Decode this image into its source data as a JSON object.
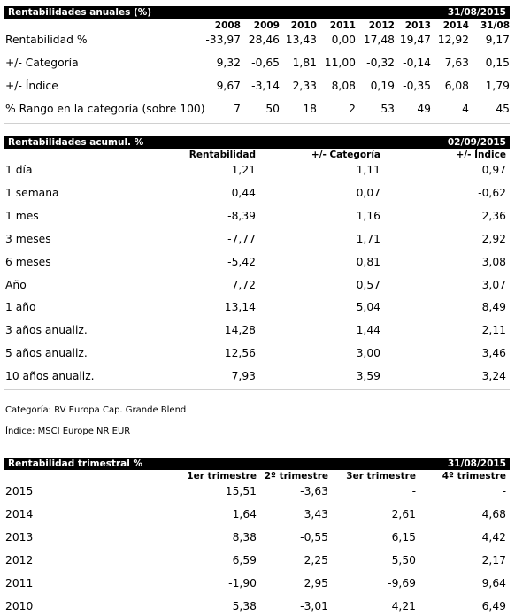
{
  "annual": {
    "title": "Rentabilidades anuales (%)",
    "date": "31/08/2015",
    "years": [
      "2008",
      "2009",
      "2010",
      "2011",
      "2012",
      "2013",
      "2014",
      "31/08"
    ],
    "rows": [
      {
        "label": "Rentabilidad %",
        "values": [
          "-33,97",
          "28,46",
          "13,43",
          "0,00",
          "17,48",
          "19,47",
          "12,92",
          "9,17"
        ]
      },
      {
        "label": "+/- Categoría",
        "values": [
          "9,32",
          "-0,65",
          "1,81",
          "11,00",
          "-0,32",
          "-0,14",
          "7,63",
          "0,15"
        ]
      },
      {
        "label": "+/- Índice",
        "values": [
          "9,67",
          "-3,14",
          "2,33",
          "8,08",
          "0,19",
          "-0,35",
          "6,08",
          "1,79"
        ]
      },
      {
        "label": "% Rango en la categoría (sobre 100)",
        "values": [
          "7",
          "50",
          "18",
          "2",
          "53",
          "49",
          "4",
          "45"
        ]
      }
    ]
  },
  "cumulative": {
    "title": "Rentabilidades acumul. %",
    "date": "02/09/2015",
    "columns": [
      "Rentabilidad",
      "+/- Categoría",
      "+/- Índice"
    ],
    "rows": [
      {
        "label": "1 día",
        "values": [
          "1,21",
          "1,11",
          "0,97"
        ]
      },
      {
        "label": "1 semana",
        "values": [
          "0,44",
          "0,07",
          "-0,62"
        ]
      },
      {
        "label": "1 mes",
        "values": [
          "-8,39",
          "1,16",
          "2,36"
        ]
      },
      {
        "label": "3 meses",
        "values": [
          "-7,77",
          "1,71",
          "2,92"
        ]
      },
      {
        "label": "6 meses",
        "values": [
          "-5,42",
          "0,81",
          "3,08"
        ]
      },
      {
        "label": "Año",
        "values": [
          "7,72",
          "0,57",
          "3,07"
        ]
      },
      {
        "label": "1 año",
        "values": [
          "13,14",
          "5,04",
          "8,49"
        ]
      },
      {
        "label": "3 años anualiz.",
        "values": [
          "14,28",
          "1,44",
          "2,11"
        ]
      },
      {
        "label": "5 años anualiz.",
        "values": [
          "12,56",
          "3,00",
          "3,46"
        ]
      },
      {
        "label": "10 años anualiz.",
        "values": [
          "7,93",
          "3,59",
          "3,24"
        ]
      }
    ]
  },
  "notes": {
    "category": "Categoría: RV Europa Cap. Grande Blend",
    "index": "Índice: MSCI Europe NR EUR"
  },
  "quarterly": {
    "title": "Rentabilidad trimestral %",
    "date": "31/08/2015",
    "columns": [
      "1er trimestre",
      "2º trimestre",
      "3er trimestre",
      "4º trimestre"
    ],
    "rows": [
      {
        "label": "2015",
        "values": [
          "15,51",
          "-3,63",
          "-",
          "-"
        ]
      },
      {
        "label": "2014",
        "values": [
          "1,64",
          "3,43",
          "2,61",
          "4,68"
        ]
      },
      {
        "label": "2013",
        "values": [
          "8,38",
          "-0,55",
          "6,15",
          "4,42"
        ]
      },
      {
        "label": "2012",
        "values": [
          "6,59",
          "2,25",
          "5,50",
          "2,17"
        ]
      },
      {
        "label": "2011",
        "values": [
          "-1,90",
          "2,95",
          "-9,69",
          "9,64"
        ]
      },
      {
        "label": "2010",
        "values": [
          "5,38",
          "-3,01",
          "4,21",
          "6,49"
        ]
      }
    ]
  }
}
